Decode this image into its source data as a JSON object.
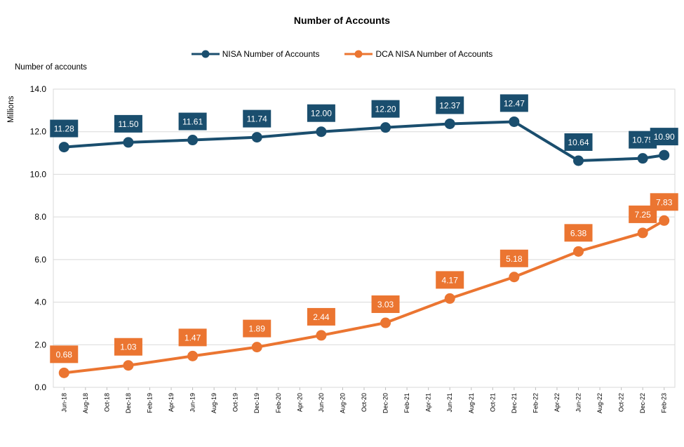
{
  "chart_data": {
    "type": "line",
    "title": "Number of Accounts",
    "ylabel": "Number of accounts",
    "yunit": "Millions",
    "ylim": [
      0,
      14
    ],
    "yticks": [
      "0.0",
      "2.0",
      "4.0",
      "6.0",
      "8.0",
      "10.0",
      "12.0",
      "14.0"
    ],
    "ytick_values": [
      0,
      2,
      4,
      6,
      8,
      10,
      12,
      14
    ],
    "x_ticks": [
      "Jun-18",
      "Aug-18",
      "Oct-18",
      "Dec-18",
      "Feb-19",
      "Apr-19",
      "Jun-19",
      "Aug-19",
      "Oct-19",
      "Dec-19",
      "Feb-20",
      "Apr-20",
      "Jun-20",
      "Aug-20",
      "Oct-20",
      "Dec-20",
      "Feb-21",
      "Apr-21",
      "Jun-21",
      "Aug-21",
      "Oct-21",
      "Dec-21",
      "Feb-22",
      "Apr-22",
      "Jun-22",
      "Aug-22",
      "Oct-22",
      "Dec-22",
      "Feb-23"
    ],
    "grid": true,
    "legend_position": "top-center",
    "series": [
      {
        "name": "NISA Number of Accounts",
        "color": "#1a4e6e",
        "x": [
          "Jun-18",
          "Dec-18",
          "Jun-19",
          "Dec-19",
          "Jun-20",
          "Dec-20",
          "Jun-21",
          "Dec-21",
          "Jun-22",
          "Dec-22",
          "Feb-23"
        ],
        "values": [
          11.28,
          11.5,
          11.61,
          11.74,
          12.0,
          12.2,
          12.37,
          12.47,
          10.64,
          10.75,
          10.9
        ],
        "labels": [
          "11.28",
          "11.50",
          "11.61",
          "11.74",
          "12.00",
          "12.20",
          "12.37",
          "12.47",
          "10.64",
          "10.75",
          "10.90"
        ]
      },
      {
        "name": "DCA NISA Number of Accounts",
        "color": "#eb7531",
        "x": [
          "Jun-18",
          "Dec-18",
          "Jun-19",
          "Dec-19",
          "Jun-20",
          "Dec-20",
          "Jun-21",
          "Dec-21",
          "Jun-22",
          "Dec-22",
          "Feb-23"
        ],
        "values": [
          0.68,
          1.03,
          1.47,
          1.89,
          2.44,
          3.03,
          4.17,
          5.18,
          6.38,
          7.25,
          7.83
        ],
        "labels": [
          "0.68",
          "1.03",
          "1.47",
          "1.89",
          "2.44",
          "3.03",
          "4.17",
          "5.18",
          "6.38",
          "7.25",
          "7.83"
        ]
      }
    ]
  }
}
